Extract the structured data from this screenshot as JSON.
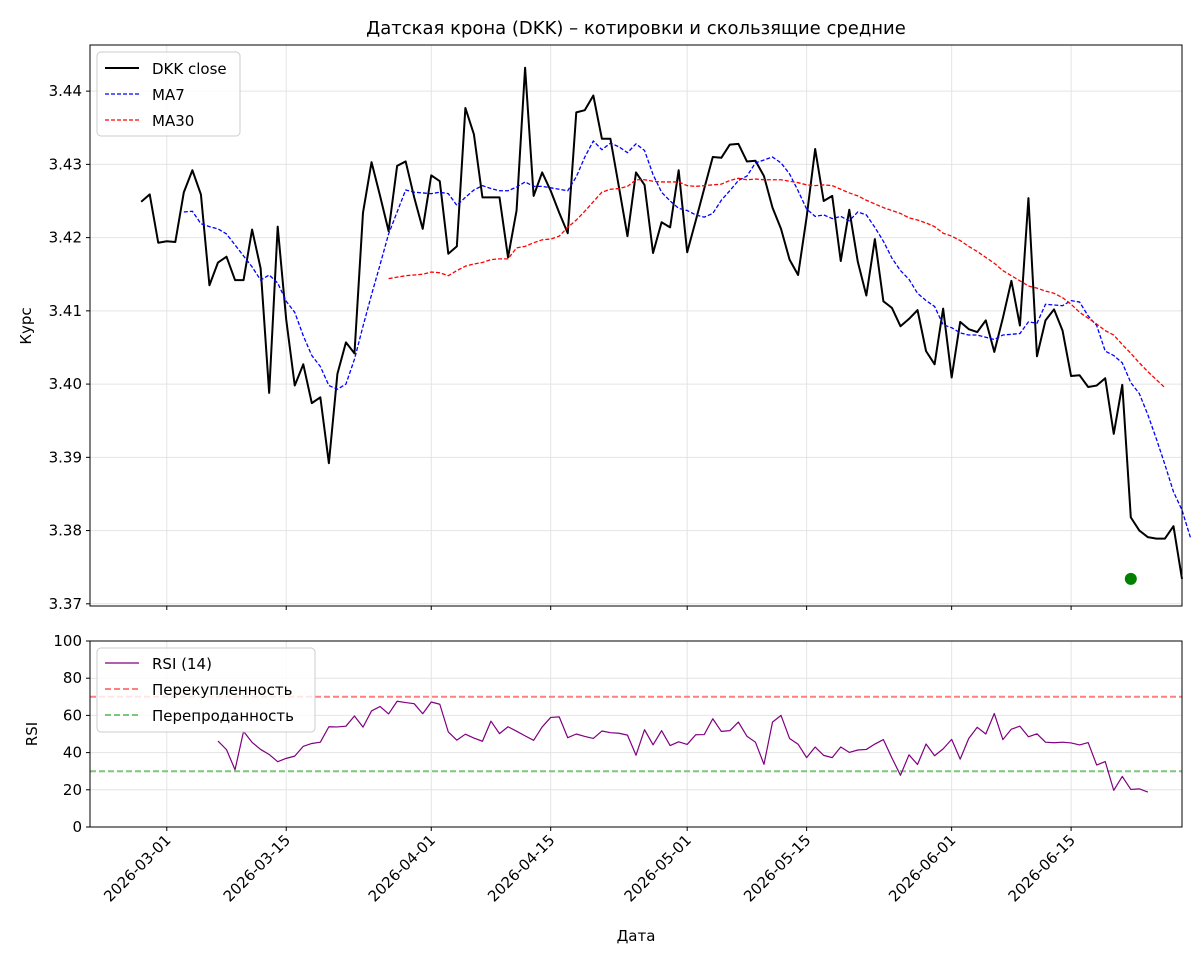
{
  "chart_data": [
    {
      "type": "line",
      "title": "Датская крона (DKK) – котировки и скользящие средние",
      "xlabel": "",
      "ylabel": "Курс",
      "ylim": [
        3.3697,
        3.4463
      ],
      "xlim": [
        "2026-02-20",
        "2026-06-28"
      ],
      "grid": true,
      "legend_position": "top-left",
      "y_ticks": [
        "3.37",
        "3.38",
        "3.39",
        "3.40",
        "3.41",
        "3.42",
        "3.43",
        "3.44"
      ],
      "x_ticks": [
        "2026-03-01",
        "2026-03-15",
        "2026-04-01",
        "2026-04-15",
        "2026-05-01",
        "2026-05-15",
        "2026-06-01",
        "2026-06-15"
      ],
      "series": [
        {
          "name": "DKK close",
          "color": "#000000",
          "style": "solid",
          "start": "2026-02-26",
          "values": [
            3.4249,
            3.4259,
            3.4193,
            3.4195,
            3.4194,
            3.4262,
            3.4292,
            3.4259,
            3.4135,
            3.4166,
            3.4174,
            3.4142,
            3.4142,
            3.4211,
            3.4158,
            3.3988,
            3.4215,
            3.4088,
            3.3998,
            3.4027,
            3.3974,
            3.3982,
            3.3892,
            3.4014,
            3.4057,
            3.4042,
            3.4234,
            3.4303,
            3.4257,
            3.4209,
            3.4298,
            3.4304,
            3.4255,
            3.4212,
            3.4285,
            3.4277,
            3.4178,
            3.4188,
            3.4377,
            3.4341,
            3.4255,
            3.4255,
            3.4255,
            3.4173,
            3.4237,
            3.4432,
            3.4257,
            3.4289,
            3.4264,
            3.4234,
            3.4206,
            3.4371,
            3.4374,
            3.4394,
            3.4335,
            3.4335,
            3.4269,
            3.4202,
            3.4289,
            3.4272,
            3.4179,
            3.4221,
            3.4214,
            3.4292,
            3.418,
            3.4223,
            3.4267,
            3.431,
            3.4309,
            3.4327,
            3.4328,
            3.4304,
            3.4305,
            3.4284,
            3.4241,
            3.4212,
            3.417,
            3.4149,
            3.4228,
            3.4321,
            3.425,
            3.4257,
            3.4168,
            3.4238,
            3.4167,
            3.4121,
            3.4198,
            3.4113,
            3.4104,
            3.4079,
            3.4089,
            3.4101,
            3.4045,
            3.4027,
            3.4103,
            3.4009,
            3.4085,
            3.4075,
            3.4071,
            3.4087,
            3.4044,
            3.409,
            3.4141,
            3.408,
            3.4254,
            3.4038,
            3.4087,
            3.4102,
            3.4073,
            3.4011,
            3.4012,
            3.3996,
            3.3998,
            3.4008,
            3.3932,
            3.3999,
            3.3818,
            3.38,
            3.3791,
            3.3789,
            3.3789,
            3.3806,
            3.3734
          ]
        },
        {
          "name": "MA7",
          "color": "#0000ff",
          "style": "dashed",
          "start": "2026-03-03",
          "values": [
            3.4235,
            3.4236,
            3.4219,
            3.4215,
            3.4212,
            3.4205,
            3.419,
            3.4175,
            3.416,
            3.4142,
            3.4149,
            3.4138,
            3.4113,
            3.4098,
            3.4066,
            3.4039,
            3.4024,
            3.3998,
            3.3993,
            3.4,
            3.4034,
            3.4079,
            3.4122,
            3.4163,
            3.4205,
            3.4235,
            3.4265,
            3.4262,
            3.4261,
            3.426,
            3.4262,
            3.426,
            3.4244,
            3.4255,
            3.4265,
            3.4271,
            3.4267,
            3.4264,
            3.4264,
            3.4269,
            3.4276,
            3.427,
            3.427,
            3.4268,
            3.4266,
            3.4264,
            3.4283,
            3.431,
            3.4332,
            3.432,
            3.4329,
            3.4324,
            3.4316,
            3.4328,
            3.4319,
            3.4286,
            3.4262,
            3.425,
            3.424,
            3.4237,
            3.4231,
            3.4228,
            3.4233,
            3.4251,
            3.4264,
            3.4278,
            3.4284,
            3.4302,
            3.4306,
            3.431,
            3.4302,
            3.4287,
            3.4264,
            3.4239,
            3.4229,
            3.4231,
            3.4226,
            3.4229,
            3.4223,
            3.4235,
            3.4231,
            3.4214,
            3.4195,
            3.4172,
            3.4155,
            3.4143,
            3.4124,
            3.4114,
            3.4106,
            3.4081,
            3.4077,
            3.407,
            3.4067,
            3.4067,
            3.4064,
            3.4061,
            3.4067,
            3.4068,
            3.4069,
            3.4085,
            3.4083,
            3.4109,
            3.4108,
            3.4107,
            3.4114,
            3.4112,
            3.4093,
            3.408,
            3.4045,
            3.4039,
            3.4029,
            3.4002,
            3.3987,
            3.3958,
            3.3925,
            3.389,
            3.3853,
            3.3828,
            3.379
          ]
        },
        {
          "name": "MA30",
          "color": "#ff0000",
          "style": "dashed",
          "start": "2026-03-27",
          "values": [
            3.4144,
            3.4146,
            3.4148,
            3.4149,
            3.415,
            3.4153,
            3.4152,
            3.4148,
            3.4155,
            3.4161,
            3.4164,
            3.4166,
            3.417,
            3.4171,
            3.4171,
            3.4186,
            3.4188,
            3.4193,
            3.4197,
            3.4198,
            3.4202,
            3.4214,
            3.4224,
            3.4236,
            3.4249,
            3.4262,
            3.4266,
            3.4267,
            3.427,
            3.4279,
            3.4279,
            3.4277,
            3.4276,
            3.4276,
            3.4276,
            3.4271,
            3.427,
            3.4271,
            3.4272,
            3.4273,
            3.4278,
            3.4281,
            3.4279,
            3.428,
            3.4279,
            3.4279,
            3.4279,
            3.4277,
            3.4275,
            3.4272,
            3.4271,
            3.4272,
            3.4271,
            3.4266,
            3.4261,
            3.4257,
            3.4251,
            3.4246,
            3.4241,
            3.4237,
            3.4233,
            3.4227,
            3.4224,
            3.422,
            3.4215,
            3.4206,
            3.4202,
            3.4196,
            3.4188,
            3.4181,
            3.4173,
            3.4165,
            3.4155,
            3.4148,
            3.4141,
            3.4134,
            3.4131,
            3.4127,
            3.4124,
            3.4118,
            3.4109,
            3.4098,
            3.409,
            3.4082,
            3.4073,
            3.4067,
            3.4054,
            3.4042,
            3.4029,
            3.4017,
            3.4006,
            3.3995
          ]
        }
      ],
      "highlight_point": {
        "date": "2026-06-22",
        "value": 3.3734,
        "color": "#008000"
      }
    },
    {
      "type": "line",
      "title": "",
      "xlabel": "Дата",
      "ylabel": "RSI",
      "ylim": [
        0,
        100
      ],
      "xlim": [
        "2026-02-20",
        "2026-06-28"
      ],
      "grid": true,
      "legend_position": "top-left",
      "y_ticks": [
        "0",
        "20",
        "40",
        "60",
        "80",
        "100"
      ],
      "x_ticks": [
        "2026-03-01",
        "2026-03-15",
        "2026-04-01",
        "2026-04-15",
        "2026-05-01",
        "2026-05-15",
        "2026-06-01",
        "2026-06-15"
      ],
      "series": [
        {
          "name": "RSI (14)",
          "color": "#800080",
          "style": "solid",
          "start": "2026-03-07",
          "values": [
            46.2,
            41.6,
            30.8,
            51.4,
            45.5,
            41.7,
            39.0,
            35.1,
            36.9,
            38.1,
            43.4,
            44.9,
            45.6,
            53.9,
            53.8,
            54.2,
            59.7,
            53.7,
            62.4,
            64.8,
            60.8,
            67.6,
            66.9,
            66.3,
            60.9,
            67.2,
            66.0,
            51.1,
            46.7,
            49.9,
            47.8,
            46.1,
            56.9,
            50.2,
            53.9,
            51.5,
            49.0,
            46.6,
            53.8,
            58.9,
            59.2,
            48.0,
            50.0,
            48.7,
            47.6,
            51.6,
            50.7,
            50.4,
            49.4,
            38.6,
            52.3,
            44.2,
            51.8,
            43.8,
            45.8,
            44.4,
            49.6,
            49.7,
            58.2,
            51.4,
            51.8,
            56.4,
            48.8,
            45.6,
            33.7,
            56.4,
            60.0,
            47.6,
            44.5,
            37.3,
            43.0,
            38.5,
            37.3,
            43.0,
            40.1,
            41.4,
            41.7,
            44.6,
            47.0,
            37.1,
            27.8,
            38.8,
            33.6,
            44.6,
            38.3,
            42.0,
            47.1,
            36.5,
            47.6,
            53.6,
            50.0,
            61.0,
            47.0,
            52.6,
            54.2,
            48.5,
            50.1,
            45.6,
            45.3,
            45.6,
            45.2,
            44.1,
            45.4,
            33.3,
            35.2,
            19.7,
            27.2,
            20.2,
            20.5,
            18.8
          ]
        },
        {
          "name": "Перекупленность",
          "color": "#ff8080",
          "style": "dashed",
          "level": 70
        },
        {
          "name": "Перепроданность",
          "color": "#7cc77c",
          "style": "dashed",
          "level": 30
        }
      ]
    }
  ]
}
